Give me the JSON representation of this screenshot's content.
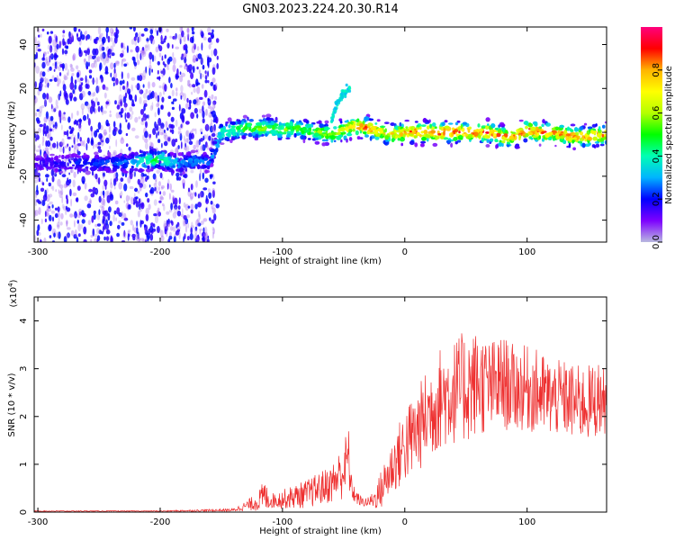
{
  "title": "GN03.2023.224.20.30.R14",
  "chart_data": [
    {
      "type": "heatmap",
      "xlabel": "Height of straight line (km)",
      "ylabel": "Frequency (Hz)",
      "xlim": [
        -303,
        165
      ],
      "ylim": [
        -50,
        48
      ],
      "x_ticks": [
        -300,
        -200,
        -100,
        0,
        100
      ],
      "y_ticks": [
        -40,
        -20,
        0,
        20,
        40
      ],
      "colorbar": {
        "label": "Normalized spectral amplitude",
        "range": [
          0,
          1
        ],
        "ticks": [
          "0.0",
          "0.2",
          "0.4",
          "0.6",
          "0.8"
        ],
        "tick_values": [
          0.0,
          0.2,
          0.4,
          0.6,
          0.8
        ],
        "colormap": [
          "#b9b9e0",
          "#7d00ff",
          "#0000ff",
          "#00b4ff",
          "#00ffb4",
          "#00ff00",
          "#b4ff00",
          "#ffff00",
          "#ffb400",
          "#ff0000",
          "#ff007d"
        ]
      },
      "ridge": {
        "x": [
          -305,
          -280,
          -260,
          -240,
          -225,
          -215,
          -200,
          -190,
          -180,
          -170,
          -160,
          -150,
          -140,
          -130,
          -120,
          -110,
          -100,
          -90,
          -80,
          -70,
          -60,
          -50,
          -40,
          -30,
          -20,
          -10,
          0,
          10,
          20,
          30,
          40,
          50,
          60,
          70,
          80,
          90,
          100,
          110,
          120,
          130,
          140,
          150,
          160,
          165
        ],
        "y": [
          -14,
          -14,
          -14,
          -14,
          -14,
          -13,
          -12,
          -14,
          -14,
          -13,
          -14,
          0,
          1,
          2,
          2,
          2,
          1,
          2,
          1,
          0,
          -1,
          1,
          3,
          2,
          0,
          -1,
          0,
          0,
          0,
          0,
          0,
          0,
          0,
          0,
          -2,
          -2,
          1,
          0,
          0,
          -1,
          -2,
          -2,
          -1,
          -1
        ],
        "amplitude": [
          0.15,
          0.2,
          0.25,
          0.25,
          0.3,
          0.45,
          0.5,
          0.35,
          0.3,
          0.3,
          0.25,
          0.45,
          0.5,
          0.55,
          0.6,
          0.55,
          0.6,
          0.55,
          0.55,
          0.6,
          0.6,
          0.7,
          0.85,
          0.85,
          0.75,
          0.8,
          0.85,
          0.9,
          0.9,
          0.9,
          0.9,
          0.9,
          0.9,
          0.9,
          0.85,
          0.85,
          0.9,
          0.9,
          0.85,
          0.85,
          0.85,
          0.85,
          0.85,
          0.8
        ]
      },
      "branch": {
        "x": [
          -60,
          -55,
          -50,
          -45
        ],
        "y": [
          5,
          14,
          18,
          20
        ],
        "amplitude": 0.3
      },
      "noise_region": {
        "x": [
          -303,
          -153
        ],
        "y": [
          -50,
          48
        ],
        "amplitude": 0.15
      }
    },
    {
      "type": "line",
      "xlabel": "Height of straight line (km)",
      "ylabel": "SNR (10 * v/v)",
      "y_scale_label": "(x10",
      "y_scale_exp": "4",
      "y_scale_close": ")",
      "xlim": [
        -303,
        165
      ],
      "ylim": [
        0,
        4.5
      ],
      "x_ticks": [
        -300,
        -200,
        -100,
        0,
        100
      ],
      "y_ticks": [
        0,
        1,
        2,
        3,
        4
      ],
      "color": "#ee3030",
      "envelope": {
        "x": [
          -305,
          -200,
          -140,
          -130,
          -120,
          -115,
          -110,
          -100,
          -90,
          -80,
          -70,
          -60,
          -50,
          -46,
          -44,
          -40,
          -35,
          -30,
          -25,
          -20,
          -10,
          0,
          10,
          20,
          30,
          40,
          50,
          60,
          70,
          80,
          90,
          100,
          110,
          120,
          130,
          140,
          150,
          160,
          165
        ],
        "mean": [
          0.02,
          0.02,
          0.04,
          0.12,
          0.2,
          0.3,
          0.22,
          0.25,
          0.3,
          0.35,
          0.45,
          0.55,
          0.8,
          1.1,
          0.5,
          0.3,
          0.2,
          0.2,
          0.25,
          0.4,
          0.9,
          1.3,
          1.6,
          2.0,
          2.3,
          2.4,
          2.5,
          2.6,
          2.5,
          2.6,
          2.5,
          2.5,
          2.4,
          2.3,
          2.3,
          2.2,
          2.2,
          2.3,
          2.2
        ],
        "spread": [
          0.01,
          0.01,
          0.03,
          0.1,
          0.2,
          0.35,
          0.15,
          0.2,
          0.25,
          0.3,
          0.35,
          0.4,
          0.6,
          0.7,
          0.3,
          0.15,
          0.1,
          0.1,
          0.2,
          0.4,
          0.6,
          0.8,
          0.9,
          1.0,
          1.1,
          1.1,
          1.2,
          1.1,
          1.0,
          1.0,
          0.9,
          0.9,
          0.9,
          0.8,
          0.8,
          0.8,
          0.8,
          0.8,
          0.6
        ]
      }
    }
  ]
}
